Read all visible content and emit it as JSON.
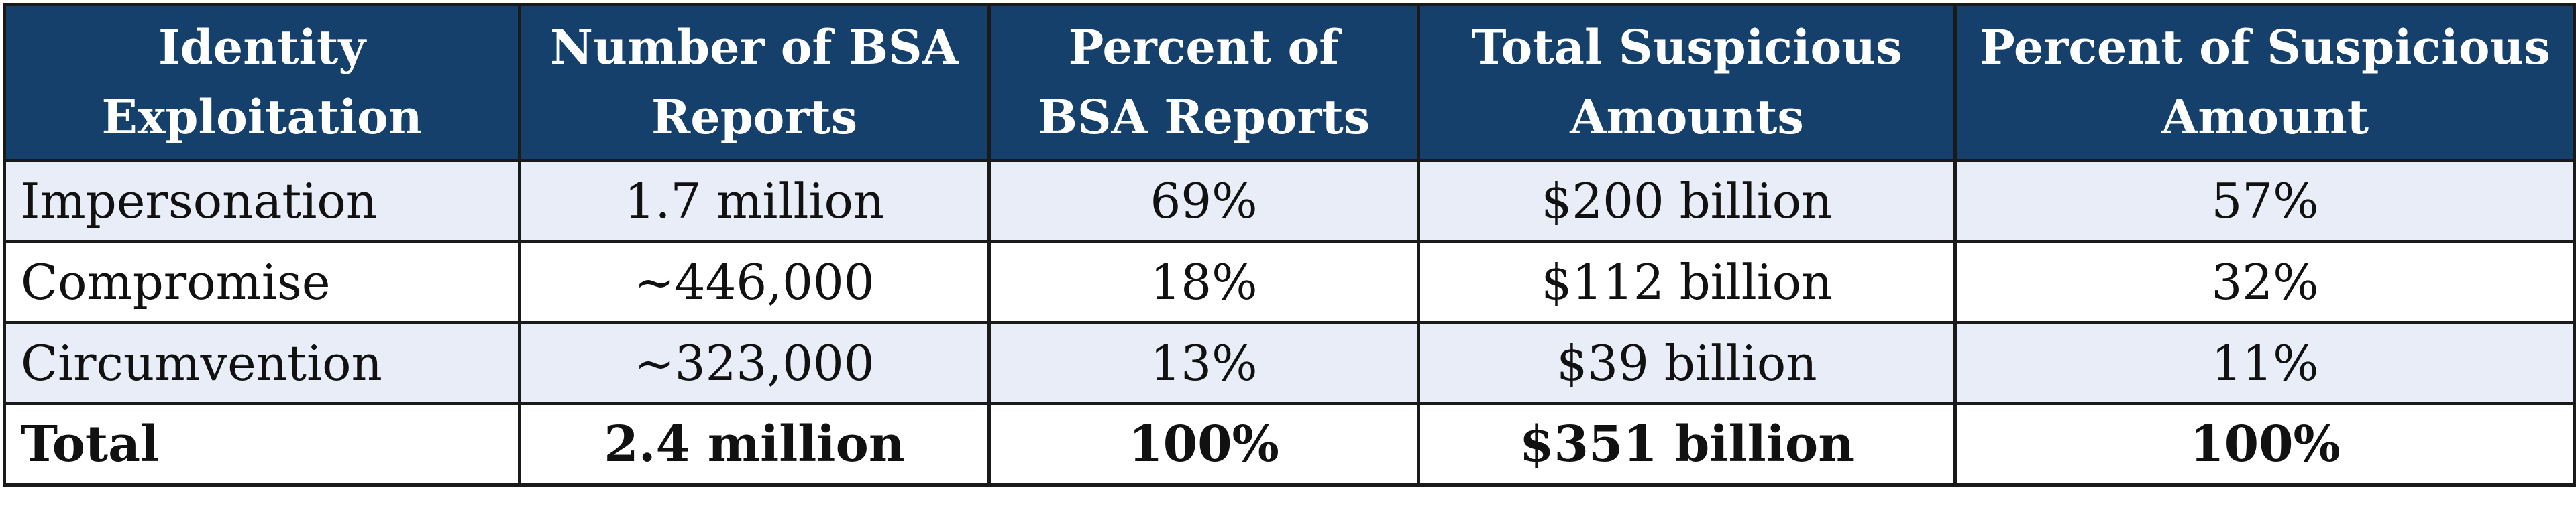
{
  "table": {
    "headers": [
      [
        "Identity",
        "Exploitation"
      ],
      [
        "Number of BSA",
        "Reports"
      ],
      [
        "Percent of",
        "BSA Reports"
      ],
      [
        "Total Suspicious",
        "Amounts"
      ],
      [
        "Percent of Suspicious",
        "Amount"
      ]
    ],
    "rows": [
      [
        "Impersonation",
        "1.7 million",
        "69%",
        "$200 billion",
        "57%"
      ],
      [
        "Compromise",
        "~446,000",
        "18%",
        "$112 billion",
        "32%"
      ],
      [
        "Circumvention",
        "~323,000",
        "13%",
        "$39 billion",
        "11%"
      ]
    ],
    "total": [
      "Total",
      "2.4 million",
      "100%",
      "$351 billion",
      "100%"
    ]
  },
  "colors": {
    "header_bg": "#14406b",
    "header_text": "#ffffff",
    "shaded_row_bg": "#e8edf7",
    "border": "#1a1a1a"
  }
}
